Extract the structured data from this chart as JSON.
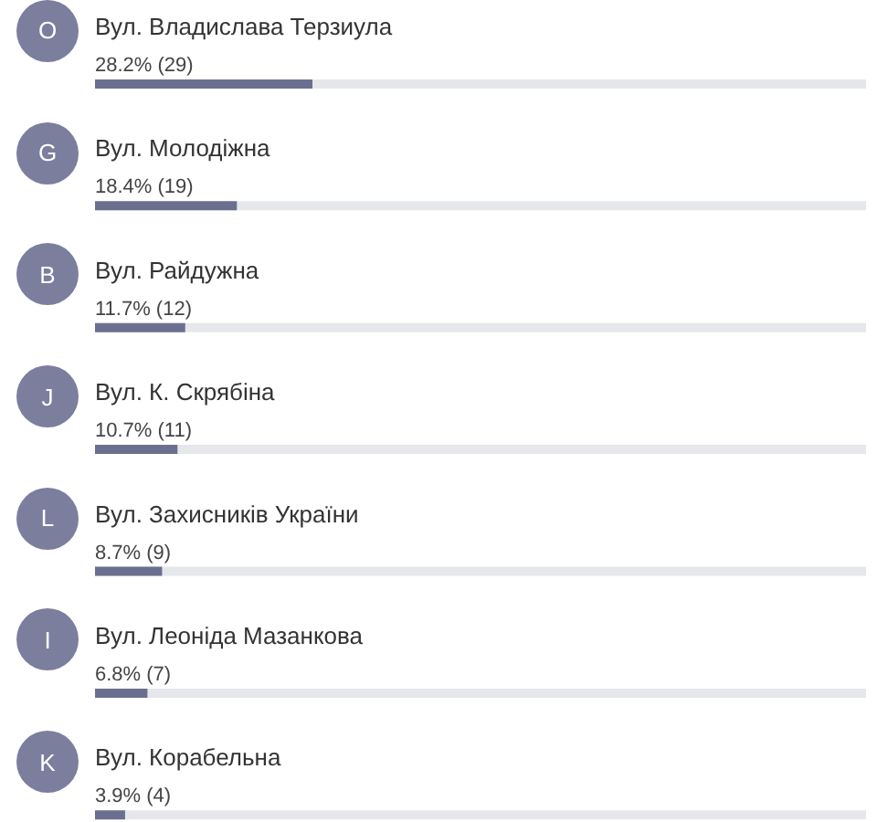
{
  "chart_data": {
    "type": "bar",
    "orientation": "horizontal",
    "categories": [
      "Вул. Владислава Терзиула",
      "Вул. Молодіжна",
      "Вул. Райдужна",
      "Вул. К. Скрябіна",
      "Вул. Захисників України",
      "Вул. Леоніда Мазанкова",
      "Вул. Корабельна"
    ],
    "values": [
      28.2,
      18.4,
      11.7,
      10.7,
      8.7,
      6.8,
      3.9
    ],
    "value_labels": [
      "28.2% (29)",
      "18.4% (19)",
      "11.7% (12)",
      "10.7% (11)",
      "8.7% (9)",
      "6.8% (7)",
      "3.9% (4)"
    ],
    "color": "#6b6f8f",
    "xlim": [
      0,
      100
    ],
    "tick_labels": "y",
    "annotations": [
      "O",
      "G",
      "B",
      "J",
      "L",
      "I",
      "K"
    ]
  }
}
